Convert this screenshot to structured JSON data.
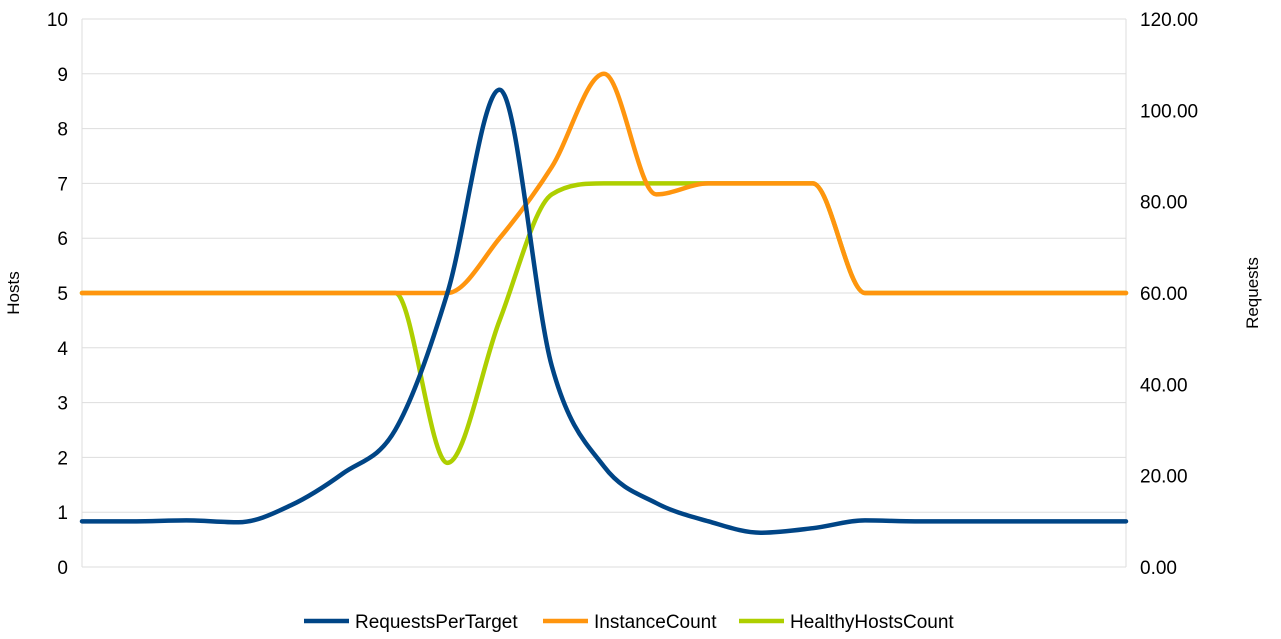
{
  "chart_data": {
    "type": "line",
    "title": "",
    "xlabel": "",
    "ylabel": "Hosts",
    "y2label": "Requests",
    "ylim": [
      0,
      10
    ],
    "y2lim": [
      0,
      120
    ],
    "yticks": [
      "0",
      "1",
      "2",
      "3",
      "4",
      "5",
      "6",
      "7",
      "8",
      "9",
      "10"
    ],
    "y2ticks": [
      "0.00",
      "20.00",
      "40.00",
      "60.00",
      "80.00",
      "100.00",
      "120.00"
    ],
    "grid": true,
    "legend_position": "bottom",
    "x": [
      0,
      1,
      2,
      3,
      4,
      5,
      6,
      7,
      8,
      9,
      10,
      11,
      12,
      13,
      14,
      15,
      16,
      17,
      18,
      19,
      20
    ],
    "series": [
      {
        "name": "RequestsPerTarget",
        "axis": "right",
        "color": "#004586",
        "values": [
          10,
          10,
          10.2,
          9.8,
          13.5,
          20.5,
          30,
          60,
          104.5,
          44,
          22,
          14,
          10,
          7.5,
          8.5,
          10.2,
          10,
          10,
          10,
          10,
          10
        ]
      },
      {
        "name": "InstanceCount",
        "axis": "left",
        "color": "#ff950e",
        "values": [
          5,
          5,
          5,
          5,
          5,
          5,
          5,
          5,
          6,
          7.3,
          9,
          6.8,
          7,
          7,
          7,
          5,
          5,
          5,
          5,
          5,
          5
        ]
      },
      {
        "name": "HealthyHostsCount",
        "axis": "left",
        "color": "#aecf00",
        "values": [
          5,
          5,
          5,
          5,
          5,
          5,
          5,
          1.9,
          4.5,
          6.8,
          7,
          7,
          7,
          7,
          7,
          5,
          5,
          5,
          5,
          5,
          5
        ]
      }
    ]
  }
}
